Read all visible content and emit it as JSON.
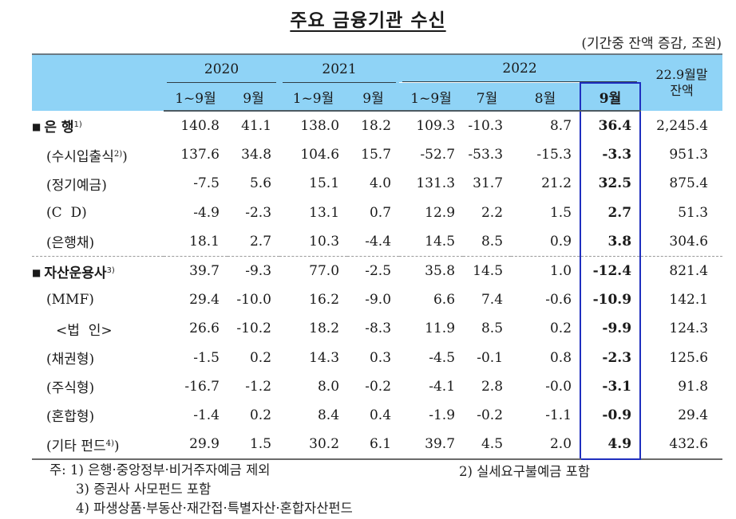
{
  "title": "주요 금융기관 수신",
  "unit": "(기간중 잔액 증감, 조원)",
  "colors": {
    "header_bg": "#8fd3f6",
    "highlight_border": "#1f2fbf"
  },
  "header": {
    "years": [
      "2020",
      "2021",
      "2022"
    ],
    "months": [
      "1~9월",
      "9월",
      "1~9월",
      "9월",
      "1~9월",
      "7월",
      "8월",
      "9월"
    ],
    "balance_line1": "22.9월말",
    "balance_line2": "잔액",
    "highlighted_column": "2022 9월"
  },
  "rows": [
    {
      "label": "은 행",
      "sup": "1)",
      "type": "category",
      "values": [
        "140.8",
        "41.1",
        "138.0",
        "18.2",
        "109.3",
        "-10.3",
        "8.7",
        "36.4",
        "2,245.4"
      ]
    },
    {
      "label": "(수시입출식",
      "sup": "2)",
      "label_suffix": ")",
      "type": "sub",
      "values": [
        "137.6",
        "34.8",
        "104.6",
        "15.7",
        "-52.7",
        "-53.3",
        "-15.3",
        "-3.3",
        "951.3"
      ]
    },
    {
      "label": "(정기예금)",
      "type": "sub",
      "values": [
        "-7.5",
        "5.6",
        "15.1",
        "4.0",
        "131.3",
        "31.7",
        "21.2",
        "32.5",
        "875.4"
      ]
    },
    {
      "label": "(C  D)",
      "type": "sub",
      "values": [
        "-4.9",
        "-2.3",
        "13.1",
        "0.7",
        "12.9",
        "2.2",
        "1.5",
        "2.7",
        "51.3"
      ]
    },
    {
      "label": "(은행채)",
      "type": "sub",
      "values": [
        "18.1",
        "2.7",
        "10.3",
        "-4.4",
        "14.5",
        "8.5",
        "0.9",
        "3.8",
        "304.6"
      ]
    },
    {
      "label": "자산운용사",
      "sup": "3)",
      "type": "category",
      "values": [
        "39.7",
        "-9.3",
        "77.0",
        "-2.5",
        "35.8",
        "14.5",
        "1.0",
        "-12.4",
        "821.4"
      ]
    },
    {
      "label": "(MMF)",
      "type": "sub",
      "values": [
        "29.4",
        "-10.0",
        "16.2",
        "-9.0",
        "6.6",
        "7.4",
        "-0.6",
        "-10.9",
        "142.1"
      ]
    },
    {
      "label": "<법  인>",
      "type": "sub2",
      "values": [
        "26.6",
        "-10.2",
        "18.2",
        "-8.3",
        "11.9",
        "8.5",
        "0.2",
        "-9.9",
        "124.3"
      ]
    },
    {
      "label": "(채권형)",
      "type": "sub",
      "values": [
        "-1.5",
        "0.2",
        "14.3",
        "0.3",
        "-4.5",
        "-0.1",
        "0.8",
        "-2.3",
        "125.6"
      ]
    },
    {
      "label": "(주식형)",
      "type": "sub",
      "values": [
        "-16.7",
        "-1.2",
        "8.0",
        "-0.2",
        "-4.1",
        "2.8",
        "-0.0",
        "-3.1",
        "91.8"
      ]
    },
    {
      "label": "(혼합형)",
      "type": "sub",
      "values": [
        "-1.4",
        "0.2",
        "8.4",
        "0.4",
        "-1.9",
        "-0.2",
        "-1.1",
        "-0.9",
        "29.4"
      ]
    },
    {
      "label": "(기타 펀드",
      "sup": "4)",
      "label_suffix": ")",
      "type": "sub",
      "values": [
        "29.9",
        "1.5",
        "30.2",
        "6.1",
        "39.7",
        "4.5",
        "2.0",
        "4.9",
        "432.6"
      ]
    }
  ],
  "notes": {
    "prefix": "주:",
    "n1": "1) 은행·중앙정부·비거주자예금 제외",
    "n2": "2) 실세요구불예금 포함",
    "n3": "3) 증권사 사모펀드 포함",
    "n4": "4) 파생상품·부동산·재간접·특별자산·혼합자산펀드"
  },
  "icons": {
    "bullet": "■"
  }
}
